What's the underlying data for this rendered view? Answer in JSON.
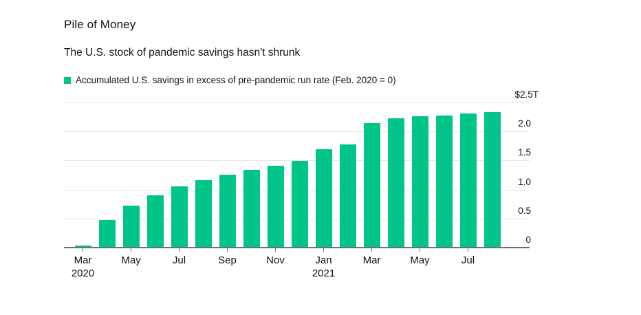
{
  "header": {
    "title": "Pile of Money",
    "subtitle": "The U.S. stock of pandemic savings hasn't shrunk"
  },
  "legend": {
    "label": "Accumulated U.S. savings in excess of pre-pandemic run rate (Feb. 2020 = 0)"
  },
  "chart_data": {
    "type": "bar",
    "title": "Pile of Money",
    "subtitle": "The U.S. stock of pandemic savings hasn't shrunk",
    "legend_entries": [
      "Accumulated U.S. savings in excess of pre-pandemic run rate (Feb. 2020 = 0)"
    ],
    "unit": "trillions of U.S. dollars",
    "categories": [
      "Mar 2020",
      "Apr 2020",
      "May 2020",
      "Jun 2020",
      "Jul 2020",
      "Aug 2020",
      "Sep 2020",
      "Oct 2020",
      "Nov 2020",
      "Dec 2020",
      "Jan 2021",
      "Feb 2021",
      "Mar 2021",
      "Apr 2021",
      "May 2021",
      "Jun 2021",
      "Jul 2021",
      "Aug 2021"
    ],
    "values": [
      0.03,
      0.47,
      0.72,
      0.9,
      1.06,
      1.16,
      1.26,
      1.34,
      1.41,
      1.49,
      1.7,
      1.78,
      2.15,
      2.23,
      2.26,
      2.28,
      2.31,
      2.33
    ],
    "ylim": [
      0,
      2.5
    ],
    "yticks": [
      {
        "value": 2.5,
        "label": "$2.5T"
      },
      {
        "value": 2.0,
        "label": "2.0"
      },
      {
        "value": 1.5,
        "label": "1.5"
      },
      {
        "value": 1.0,
        "label": "1.0"
      },
      {
        "value": 0.5,
        "label": "0.5"
      },
      {
        "value": 0.0,
        "label": "0"
      }
    ],
    "xticks": [
      {
        "index": 0,
        "label": "Mar",
        "sublabel": "2020"
      },
      {
        "index": 2,
        "label": "May",
        "sublabel": ""
      },
      {
        "index": 4,
        "label": "Jul",
        "sublabel": ""
      },
      {
        "index": 6,
        "label": "Sep",
        "sublabel": ""
      },
      {
        "index": 8,
        "label": "Nov",
        "sublabel": ""
      },
      {
        "index": 10,
        "label": "Jan",
        "sublabel": "2021"
      },
      {
        "index": 12,
        "label": "Mar",
        "sublabel": ""
      },
      {
        "index": 14,
        "label": "May",
        "sublabel": ""
      },
      {
        "index": 16,
        "label": "Jul",
        "sublabel": ""
      }
    ],
    "grid": "horizontal",
    "legend_position": "top-left",
    "bar_color": "#00c489",
    "gridline_color": "#e4e4e4",
    "axis_color": "#6f6f6f",
    "text_color": "#111111"
  }
}
